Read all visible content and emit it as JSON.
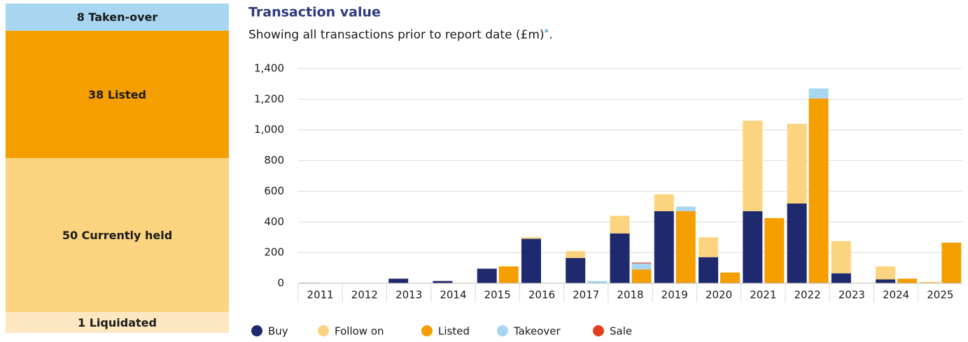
{
  "portfolio": {
    "blocks": [
      {
        "label": "8 Taken-over",
        "color": "#a8d6f0"
      },
      {
        "label": "38 Listed",
        "color": "#f59e00"
      },
      {
        "label": "50 Currently held",
        "color": "#fcd47f"
      },
      {
        "label": "1 Liquidated",
        "color": "#fde7c1"
      }
    ]
  },
  "chart_data": {
    "type": "grouped-stacked-bar",
    "title": "Transaction value",
    "subtitle": "Showing all transactions prior to report date (£m)",
    "subtitle_marker": "*",
    "subtitle_end": ".",
    "categories": [
      "2011",
      "2012",
      "2013",
      "2014",
      "2015",
      "2016",
      "2017",
      "2018",
      "2019",
      "2020",
      "2021",
      "2022",
      "2023",
      "2024",
      "2025"
    ],
    "series": [
      {
        "name": "Buy",
        "color": "#1f2a6e",
        "stack": "left",
        "values": [
          3,
          2,
          30,
          15,
          95,
          290,
          165,
          325,
          470,
          170,
          470,
          520,
          65,
          25,
          0
        ]
      },
      {
        "name": "Follow on",
        "color": "#fcd47f",
        "stack": "left",
        "values": [
          0,
          0,
          0,
          0,
          0,
          10,
          45,
          115,
          110,
          130,
          590,
          520,
          210,
          85,
          10
        ]
      },
      {
        "name": "Listed",
        "color": "#f59e00",
        "stack": "right",
        "values": [
          0,
          0,
          0,
          0,
          110,
          0,
          0,
          90,
          470,
          70,
          425,
          1205,
          0,
          30,
          265
        ]
      },
      {
        "name": "Takeover",
        "color": "#a8d6f0",
        "stack": "right",
        "values": [
          0,
          0,
          0,
          0,
          0,
          0,
          15,
          40,
          30,
          0,
          0,
          65,
          0,
          0,
          0
        ]
      },
      {
        "name": "Sale",
        "color": "#e0401e",
        "stack": "right",
        "values": [
          0,
          0,
          0,
          0,
          0,
          0,
          0,
          5,
          0,
          0,
          0,
          0,
          0,
          0,
          0
        ]
      }
    ],
    "ylim": [
      0,
      1400
    ],
    "yticks": [
      0,
      200,
      400,
      600,
      800,
      {
        "value": 1000,
        "label": "1,000"
      },
      {
        "value": 1200,
        "label": "1,200"
      },
      {
        "value": 1400,
        "label": "1,400"
      }
    ],
    "grid": true
  }
}
